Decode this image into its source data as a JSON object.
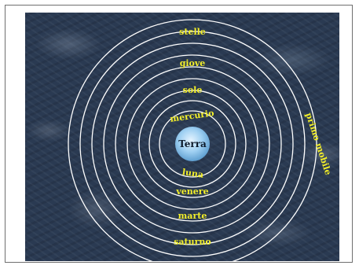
{
  "diagram": {
    "center": "Terra",
    "spheres": [
      {
        "name": "luna"
      },
      {
        "name": "mercurio"
      },
      {
        "name": "venere"
      },
      {
        "name": "sole"
      },
      {
        "name": "marte"
      },
      {
        "name": "giove"
      },
      {
        "name": "saturno"
      },
      {
        "name": "stelle"
      },
      {
        "name": "primo mobile"
      }
    ]
  },
  "colors": {
    "background": "#2a3a52",
    "orbit_line": "#ffffff",
    "label": "#f2ee2a",
    "earth": "#8ec3ea"
  }
}
